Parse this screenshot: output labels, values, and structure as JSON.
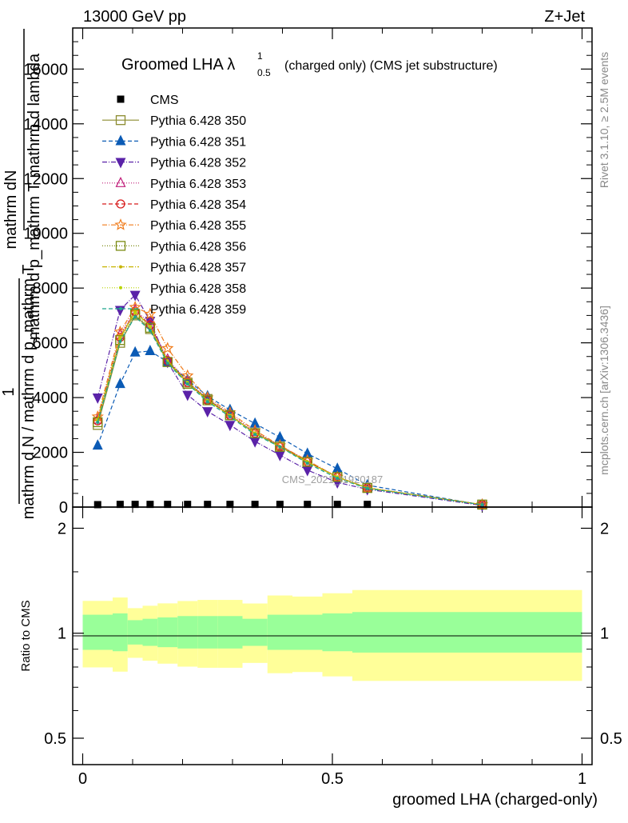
{
  "header": {
    "left": "13000 GeV pp",
    "right": "Z+Jet"
  },
  "side_labels": {
    "rivet": "Rivet 3.1.10, ≥ 2.5M events",
    "mcplots": "mcplots.cern.ch [arXiv:1306.3436]"
  },
  "watermark": "CMS_2021_I1920187",
  "chart_data": {
    "type": "line",
    "title_main": "Groomed LHA λ",
    "title_sup": "1",
    "title_sub": "0.5",
    "title_suffix": "(charged only) (CMS jet substructure)",
    "xlabel": "groomed LHA (charged-only)",
    "ylabel_upper_line1": "mathrm dN",
    "ylabel_upper_line2": "mathrm d p_mathrm T mathrm d lambda",
    "ylabel_upper_line3": "mathrm d N / mathrm d p_mathrm T",
    "ylabel_one": "1",
    "ylabel_ratio": "Ratio to CMS",
    "xlim": [
      -0.02,
      1.02
    ],
    "ylim": [
      0,
      17500
    ],
    "ratio_ylim": [
      0.42,
      2.3
    ],
    "x_ticks": [
      {
        "value": 0,
        "label": "0"
      },
      {
        "value": 0.5,
        "label": "0.5"
      },
      {
        "value": 1,
        "label": "1"
      }
    ],
    "y_ticks": [
      {
        "value": 0,
        "label": "0"
      },
      {
        "value": 2000,
        "label": "2000"
      },
      {
        "value": 4000,
        "label": "4000"
      },
      {
        "value": 6000,
        "label": "6000"
      },
      {
        "value": 8000,
        "label": "8000"
      },
      {
        "value": 10000,
        "label": "10000"
      },
      {
        "value": 12000,
        "label": "12000"
      },
      {
        "value": 14000,
        "label": "14000"
      },
      {
        "value": 16000,
        "label": "16000"
      }
    ],
    "ratio_ticks": [
      {
        "value": 0.5,
        "label": "0.5"
      },
      {
        "value": 1,
        "label": "1"
      },
      {
        "value": 2,
        "label": "2"
      }
    ],
    "bin_edges": [
      0,
      0.06,
      0.09,
      0.12,
      0.15,
      0.19,
      0.23,
      0.27,
      0.32,
      0.37,
      0.42,
      0.48,
      0.54,
      0.6,
      1.0
    ],
    "x": [
      0.03,
      0.075,
      0.105,
      0.135,
      0.17,
      0.21,
      0.25,
      0.295,
      0.345,
      0.395,
      0.45,
      0.51,
      0.57,
      0.8
    ],
    "data": {
      "name": "CMS",
      "values": [
        30,
        40,
        40,
        40,
        40,
        40,
        40,
        40,
        40,
        40,
        40,
        40,
        40,
        0
      ]
    },
    "ratio_band_inner": [
      0.13,
      0.14,
      0.09,
      0.1,
      0.11,
      0.12,
      0.12,
      0.12,
      0.1,
      0.13,
      0.13,
      0.14,
      0.15,
      0.15
    ],
    "ratio_band_outer": [
      0.12,
      0.14,
      0.1,
      0.11,
      0.12,
      0.13,
      0.14,
      0.14,
      0.13,
      0.17,
      0.16,
      0.18,
      0.2,
      0.2
    ],
    "series": [
      {
        "name": "Pythia 6.428 350",
        "color": "#8b8b2e",
        "dash": "",
        "marker": "square-open",
        "values": [
          3000,
          6000,
          7000,
          6500,
          5300,
          4550,
          3950,
          3350,
          2700,
          2250,
          1650,
          1100,
          700,
          90
        ]
      },
      {
        "name": "Pythia 6.428 351",
        "color": "#0b5bb5",
        "dash": "5,3",
        "marker": "triangle-up-filled",
        "values": [
          2250,
          4500,
          5650,
          5700,
          5300,
          4650,
          4050,
          3550,
          3050,
          2550,
          1950,
          1400,
          800,
          80
        ]
      },
      {
        "name": "Pythia 6.428 352",
        "color": "#5a22a8",
        "dash": "6,2,1,2",
        "marker": "triangle-down-filled",
        "values": [
          4000,
          7200,
          7750,
          6800,
          5300,
          4100,
          3500,
          3000,
          2400,
          1900,
          1350,
          900,
          650,
          60
        ]
      },
      {
        "name": "Pythia 6.428 353",
        "color": "#c01d7a",
        "dash": "1,2",
        "marker": "triangle-up-open",
        "values": [
          3200,
          6300,
          7200,
          6700,
          5400,
          4600,
          3950,
          3400,
          2750,
          2250,
          1700,
          1100,
          700,
          90
        ]
      },
      {
        "name": "Pythia 6.428 354",
        "color": "#d81b1b",
        "dash": "5,3",
        "marker": "circle-open",
        "values": [
          3150,
          6200,
          7150,
          6650,
          5350,
          4550,
          3900,
          3350,
          2700,
          2200,
          1650,
          1100,
          700,
          90
        ]
      },
      {
        "name": "Pythia 6.428 355",
        "color": "#f07b1a",
        "dash": "6,2,1,2",
        "marker": "star-open",
        "values": [
          3300,
          6400,
          7300,
          7050,
          5800,
          4800,
          4000,
          3450,
          2800,
          2250,
          1700,
          1100,
          700,
          90
        ]
      },
      {
        "name": "Pythia 6.428 356",
        "color": "#7a8a12",
        "dash": "1,2",
        "marker": "square-open",
        "values": [
          3100,
          6100,
          7050,
          6550,
          5300,
          4500,
          3900,
          3350,
          2700,
          2200,
          1650,
          1100,
          700,
          90
        ]
      },
      {
        "name": "Pythia 6.428 357",
        "color": "#c7b400",
        "dash": "6,2,1,2",
        "marker": "dot",
        "values": [
          3200,
          6200,
          7150,
          6600,
          5350,
          4550,
          3900,
          3350,
          2700,
          2200,
          1650,
          1100,
          700,
          90
        ]
      },
      {
        "name": "Pythia 6.428 358",
        "color": "#b8d400",
        "dash": "1,2",
        "marker": "dot",
        "values": [
          3150,
          6150,
          7100,
          6600,
          5300,
          4550,
          3900,
          3350,
          2700,
          2200,
          1650,
          1100,
          700,
          90
        ]
      },
      {
        "name": "Pythia 6.428 359",
        "color": "#1fa58c",
        "dash": "5,3",
        "marker": "dot",
        "values": [
          3100,
          6050,
          6950,
          6450,
          5250,
          4500,
          3850,
          3300,
          2650,
          2200,
          1600,
          1050,
          680,
          85
        ]
      }
    ]
  }
}
